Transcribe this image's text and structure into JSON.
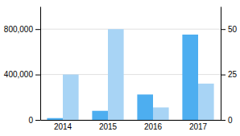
{
  "chart_data": {
    "type": "bar",
    "categories": [
      "2014",
      "2015",
      "2016",
      "2017"
    ],
    "series": [
      {
        "color": "#4daef0",
        "values": [
          1,
          5,
          14,
          47
        ],
        "axis": "y2"
      },
      {
        "color": "#a8d4f5",
        "values": [
          400000,
          800000,
          110000,
          320000
        ]
      }
    ],
    "ylim": [
      0,
      1000000
    ],
    "yticks": [
      0,
      {
        "value": 400000,
        "label": "400,000"
      },
      {
        "value": 800000,
        "label": "800,000"
      }
    ],
    "y2lim": [
      0,
      62.5
    ],
    "y2ticks": [
      0,
      25,
      50
    ],
    "grid": true
  }
}
